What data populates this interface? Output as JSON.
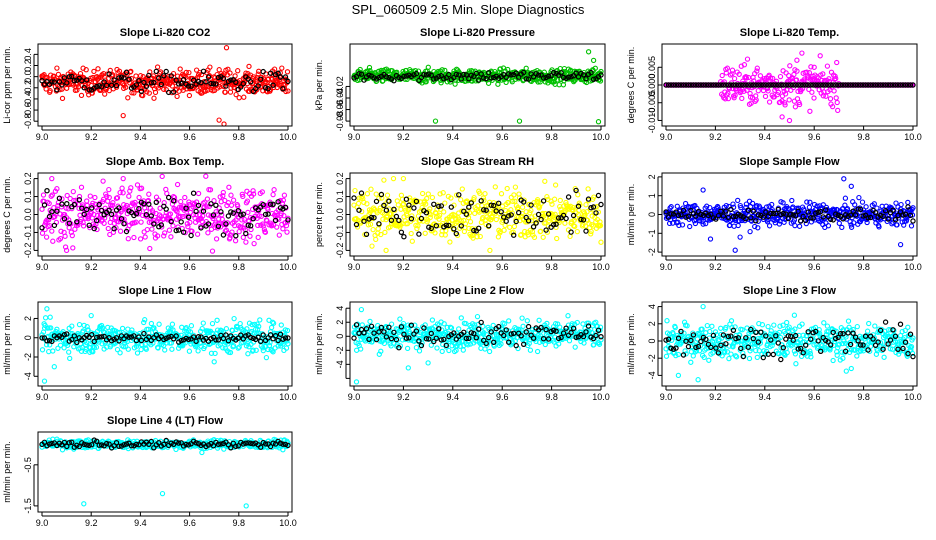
{
  "suptitle": "SPL_060509  2.5 Min. Slope Diagnostics",
  "chart_data": [
    {
      "type": "scatter",
      "title": "Slope Li-820 CO2",
      "ylabel": "Li-cor ppm per min.",
      "color": "#ff0000",
      "xlim": [
        9.0,
        10.0
      ],
      "ylim": [
        -0.85,
        0.55
      ],
      "yticks": [
        -0.8,
        -0.6,
        -0.4,
        -0.2,
        0.0,
        0.2,
        0.4
      ],
      "ytick_labels": [
        "-0.8",
        "-0.6",
        "-0.4",
        "-0.2",
        "0.0",
        "0.2",
        "0.4"
      ],
      "center": -0.1,
      "spread": 0.11,
      "black_spread": 0.09,
      "outliers": [
        [
          9.74,
          -0.85
        ],
        [
          9.72,
          -0.78
        ],
        [
          9.33,
          -0.7
        ],
        [
          9.75,
          0.52
        ]
      ]
    },
    {
      "type": "scatter",
      "title": "Slope Li-820 Pressure",
      "ylabel": "kPa per min.",
      "color": "#00c000",
      "xlim": [
        9.0,
        10.0
      ],
      "ylim": [
        -0.085,
        0.05
      ],
      "yticks": [
        -0.08,
        -0.06,
        -0.04,
        -0.02
      ],
      "ytick_labels": [
        "-0.08",
        "-0.06",
        "-0.04",
        "-0.02"
      ],
      "center": -0.002,
      "spread": 0.006,
      "black_spread": 0.004,
      "outliers": [
        [
          9.33,
          -0.08
        ],
        [
          9.67,
          -0.08
        ],
        [
          9.99,
          -0.081
        ],
        [
          9.95,
          0.04
        ],
        [
          9.97,
          0.025
        ]
      ]
    },
    {
      "type": "scatter",
      "title": "Slope Li-820 Temp.",
      "ylabel": "degrees C per min.",
      "color": "#ff00ff",
      "xlim": [
        9.0,
        10.0
      ],
      "ylim": [
        -0.011,
        0.011
      ],
      "yticks": [
        -0.01,
        -0.005,
        0.0,
        0.005
      ],
      "ytick_labels": [
        "-0.010",
        "-0.005",
        "0.000",
        "0.005"
      ],
      "center": 0.0,
      "spread": 0.0,
      "black_spread": 0.0,
      "burst": {
        "from": 9.22,
        "to": 9.7,
        "spread": 0.0028
      },
      "outliers": [
        [
          9.55,
          0.009
        ],
        [
          9.53,
          0.007
        ],
        [
          9.5,
          -0.01
        ],
        [
          9.47,
          -0.009
        ],
        [
          9.6,
          0.005
        ]
      ]
    },
    {
      "type": "scatter",
      "title": "Slope Amb. Box Temp.",
      "ylabel": "degrees C per min.",
      "color": "#ff00ff",
      "xlim": [
        9.0,
        10.0
      ],
      "ylim": [
        -0.22,
        0.22
      ],
      "yticks": [
        -0.2,
        -0.1,
        0.0,
        0.1,
        0.2
      ],
      "ytick_labels": [
        "-0.2",
        "-0.1",
        "0.0",
        "0.1",
        "0.2"
      ],
      "center": 0.0,
      "spread": 0.075,
      "black_spread": 0.06,
      "outliers": [
        [
          9.04,
          0.2
        ],
        [
          9.1,
          -0.2
        ],
        [
          9.33,
          0.2
        ]
      ]
    },
    {
      "type": "scatter",
      "title": "Slope Gas Stream RH",
      "ylabel": "percent per min.",
      "color": "#ffff00",
      "xlim": [
        9.0,
        10.0
      ],
      "ylim": [
        -0.22,
        0.22
      ],
      "yticks": [
        -0.2,
        -0.1,
        0.0,
        0.1,
        0.2
      ],
      "ytick_labels": [
        "-0.2",
        "-0.1",
        "0.0",
        "0.1",
        "0.2"
      ],
      "center": 0.0,
      "spread": 0.07,
      "black_spread": 0.06,
      "outliers": [
        [
          9.13,
          -0.2
        ],
        [
          9.16,
          0.2
        ],
        [
          9.2,
          0.2
        ],
        [
          9.55,
          -0.2
        ]
      ]
    },
    {
      "type": "scatter",
      "title": "Slope Sample Flow",
      "ylabel": "ml/min per min.",
      "color": "#0000ff",
      "xlim": [
        9.0,
        10.0
      ],
      "ylim": [
        -2.1,
        2.1
      ],
      "yticks": [
        -2,
        -1,
        0,
        1,
        2
      ],
      "ytick_labels": [
        "-2",
        "-1",
        "0",
        "1",
        "2"
      ],
      "center": 0.0,
      "spread": 0.3,
      "black_spread": 0.15,
      "outliers": [
        [
          9.15,
          1.3
        ],
        [
          9.18,
          -1.3
        ],
        [
          9.28,
          -1.9
        ],
        [
          9.3,
          -1.2
        ],
        [
          9.72,
          1.9
        ],
        [
          9.75,
          1.5
        ],
        [
          9.95,
          -1.6
        ]
      ]
    },
    {
      "type": "scatter",
      "title": "Slope Line 1 Flow",
      "ylabel": "ml/min per min.",
      "color": "#00ffff",
      "xlim": [
        9.0,
        10.0
      ],
      "ylim": [
        -4.8,
        3.5
      ],
      "yticks": [
        -4,
        -2,
        0,
        2
      ],
      "ytick_labels": [
        "-4",
        "-2",
        "0",
        "2"
      ],
      "center": 0.0,
      "spread": 0.8,
      "black_spread": 0.25,
      "outliers": [
        [
          9.01,
          -4.5
        ],
        [
          9.02,
          3.0
        ],
        [
          9.05,
          -3.0
        ],
        [
          9.7,
          -2.5
        ],
        [
          9.2,
          2.3
        ]
      ]
    },
    {
      "type": "scatter",
      "title": "Slope Line 2 Flow",
      "ylabel": "ml/min per min.",
      "color": "#00ffff",
      "xlim": [
        9.0,
        10.0
      ],
      "ylim": [
        -6.8,
        4.6
      ],
      "yticks": [
        -6,
        -4,
        -2,
        0,
        2,
        4
      ],
      "ytick_labels": [
        "",
        "-4",
        "-2",
        "0",
        "2",
        "4"
      ],
      "center": 0.2,
      "spread": 1.0,
      "black_spread": 0.7,
      "outliers": [
        [
          9.01,
          -6.5
        ],
        [
          9.03,
          3.8
        ],
        [
          9.5,
          2.8
        ],
        [
          9.22,
          -4.5
        ],
        [
          9.3,
          -3.8
        ]
      ]
    },
    {
      "type": "scatter",
      "title": "Slope Line 3 Flow",
      "ylabel": "ml/min per min.",
      "color": "#00ffff",
      "xlim": [
        9.0,
        10.0
      ],
      "ylim": [
        -5.0,
        4.3
      ],
      "yticks": [
        -4,
        -2,
        0,
        2,
        4
      ],
      "ytick_labels": [
        "-4",
        "-2",
        "0",
        "2",
        "4"
      ],
      "center": 0.0,
      "spread": 1.0,
      "black_spread": 0.8,
      "outliers": [
        [
          9.13,
          -4.5
        ],
        [
          9.15,
          4.0
        ],
        [
          9.52,
          3.0
        ],
        [
          9.73,
          -3.5
        ],
        [
          9.75,
          -3.2
        ],
        [
          9.05,
          -4.0
        ]
      ]
    },
    {
      "type": "scatter",
      "title": "Slope Line 4 (LT) Flow",
      "ylabel": "ml/min per min.",
      "color": "#00ffff",
      "xlim": [
        9.0,
        10.0
      ],
      "ylim": [
        -1.6,
        0.25
      ],
      "yticks": [
        -1.5,
        -0.5
      ],
      "ytick_labels": [
        "-1.5",
        "-0.5"
      ],
      "center": 0.0,
      "spread": 0.05,
      "black_spread": 0.04,
      "outliers": [
        [
          9.17,
          -1.45
        ],
        [
          9.49,
          -1.2
        ],
        [
          9.83,
          -1.5
        ],
        [
          9.65,
          -0.2
        ]
      ]
    }
  ],
  "xticks": [
    9.0,
    9.2,
    9.4,
    9.6,
    9.8,
    10.0
  ],
  "xtick_labels": [
    "9.0",
    "9.2",
    "9.4",
    "9.6",
    "9.8",
    "10.0"
  ]
}
